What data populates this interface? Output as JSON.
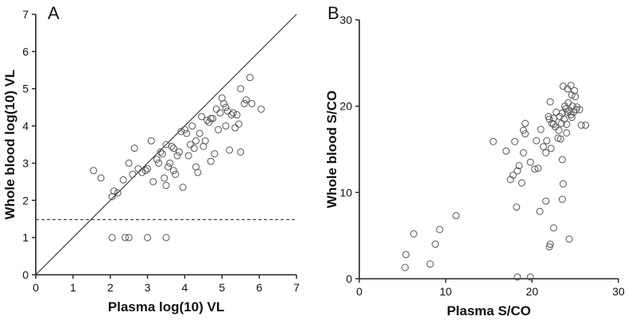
{
  "chart_data": [
    {
      "type": "scatter",
      "panel_label": "A",
      "xlabel": "Plasma log(10) VL",
      "ylabel": "Whole blood log(10) VL",
      "xlim": [
        0,
        7
      ],
      "ylim": [
        0,
        7
      ],
      "xticks": [
        "0",
        "1",
        "2",
        "3",
        "4",
        "5",
        "6",
        "7"
      ],
      "yticks": [
        "0",
        "1",
        "2",
        "3",
        "4",
        "5",
        "6",
        "7"
      ],
      "identity_line": true,
      "threshold_y": 1.48,
      "points": [
        [
          1.55,
          2.8
        ],
        [
          1.75,
          2.6
        ],
        [
          2.05,
          2.1
        ],
        [
          2.1,
          2.25
        ],
        [
          2.2,
          2.2
        ],
        [
          2.35,
          2.55
        ],
        [
          2.5,
          3.0
        ],
        [
          2.6,
          2.7
        ],
        [
          2.65,
          3.4
        ],
        [
          2.75,
          2.85
        ],
        [
          2.85,
          2.75
        ],
        [
          2.95,
          2.8
        ],
        [
          3.0,
          2.85
        ],
        [
          3.1,
          3.6
        ],
        [
          3.15,
          2.5
        ],
        [
          3.25,
          3.1
        ],
        [
          3.3,
          3.0
        ],
        [
          3.35,
          3.3
        ],
        [
          3.4,
          3.25
        ],
        [
          3.45,
          2.6
        ],
        [
          3.5,
          2.4
        ],
        [
          3.5,
          3.5
        ],
        [
          3.55,
          2.9
        ],
        [
          3.6,
          3.0
        ],
        [
          3.65,
          3.45
        ],
        [
          3.7,
          2.8
        ],
        [
          3.7,
          3.4
        ],
        [
          3.75,
          2.7
        ],
        [
          3.8,
          3.2
        ],
        [
          3.85,
          3.3
        ],
        [
          3.9,
          3.85
        ],
        [
          3.95,
          2.35
        ],
        [
          4.0,
          3.9
        ],
        [
          4.05,
          3.8
        ],
        [
          4.1,
          3.2
        ],
        [
          4.15,
          3.5
        ],
        [
          4.2,
          4.0
        ],
        [
          4.25,
          3.4
        ],
        [
          4.3,
          2.9
        ],
        [
          4.3,
          3.6
        ],
        [
          4.35,
          2.75
        ],
        [
          4.4,
          3.8
        ],
        [
          4.45,
          4.25
        ],
        [
          4.5,
          3.45
        ],
        [
          4.55,
          3.6
        ],
        [
          4.6,
          4.15
        ],
        [
          4.65,
          4.1
        ],
        [
          4.7,
          4.2
        ],
        [
          4.7,
          3.05
        ],
        [
          4.75,
          4.2
        ],
        [
          4.8,
          3.25
        ],
        [
          4.85,
          4.45
        ],
        [
          4.9,
          3.9
        ],
        [
          4.95,
          4.35
        ],
        [
          5.0,
          4.75
        ],
        [
          5.05,
          4.6
        ],
        [
          5.1,
          4.5
        ],
        [
          5.1,
          4.0
        ],
        [
          5.15,
          4.4
        ],
        [
          5.2,
          3.35
        ],
        [
          5.25,
          4.3
        ],
        [
          5.3,
          4.35
        ],
        [
          5.35,
          3.95
        ],
        [
          5.4,
          4.3
        ],
        [
          5.45,
          4.05
        ],
        [
          5.5,
          5.0
        ],
        [
          5.5,
          3.3
        ],
        [
          5.6,
          4.6
        ],
        [
          5.65,
          4.7
        ],
        [
          5.75,
          5.3
        ],
        [
          5.8,
          4.6
        ],
        [
          6.05,
          4.45
        ],
        [
          2.05,
          1.0
        ],
        [
          2.4,
          1.0
        ],
        [
          2.5,
          1.0
        ],
        [
          3.0,
          1.0
        ],
        [
          3.5,
          1.0
        ]
      ]
    },
    {
      "type": "scatter",
      "panel_label": "B",
      "xlabel": "Plasma S/CO",
      "ylabel": "Whole blood S/CO",
      "xlim": [
        0,
        30
      ],
      "ylim": [
        0,
        30
      ],
      "xticks": [
        "0",
        "10",
        "20",
        "30"
      ],
      "yticks": [
        "0",
        "10",
        "20",
        "30"
      ],
      "points": [
        [
          5.3,
          1.3
        ],
        [
          5.4,
          2.8
        ],
        [
          6.3,
          5.2
        ],
        [
          8.2,
          1.7
        ],
        [
          8.8,
          4.0
        ],
        [
          9.3,
          5.7
        ],
        [
          11.2,
          7.3
        ],
        [
          15.5,
          15.9
        ],
        [
          17.0,
          14.8
        ],
        [
          17.5,
          11.5
        ],
        [
          17.8,
          12.0
        ],
        [
          18.0,
          15.9
        ],
        [
          18.2,
          8.3
        ],
        [
          18.3,
          12.5
        ],
        [
          18.5,
          13.1
        ],
        [
          18.8,
          11.1
        ],
        [
          19.0,
          14.6
        ],
        [
          19.0,
          17.2
        ],
        [
          19.2,
          18.0
        ],
        [
          19.2,
          16.8
        ],
        [
          19.8,
          13.5
        ],
        [
          20.3,
          12.7
        ],
        [
          20.5,
          16.0
        ],
        [
          20.7,
          12.8
        ],
        [
          20.9,
          7.8
        ],
        [
          21.0,
          17.3
        ],
        [
          21.3,
          15.3
        ],
        [
          21.6,
          9.0
        ],
        [
          21.6,
          14.6
        ],
        [
          21.7,
          16.0
        ],
        [
          21.9,
          18.8
        ],
        [
          22.0,
          18.5
        ],
        [
          22.1,
          20.5
        ],
        [
          22.2,
          15.1
        ],
        [
          22.3,
          18.0
        ],
        [
          22.5,
          17.9
        ],
        [
          22.5,
          18.6
        ],
        [
          22.7,
          17.6
        ],
        [
          22.8,
          19.3
        ],
        [
          23.0,
          16.3
        ],
        [
          23.1,
          17.2
        ],
        [
          23.2,
          18.8
        ],
        [
          23.3,
          16.2
        ],
        [
          23.4,
          18.0
        ],
        [
          23.5,
          19.2
        ],
        [
          23.7,
          18.5
        ],
        [
          23.8,
          20.0
        ],
        [
          23.9,
          19.7
        ],
        [
          24.0,
          17.9
        ],
        [
          24.0,
          16.9
        ],
        [
          24.1,
          19.3
        ],
        [
          24.2,
          20.4
        ],
        [
          24.3,
          19.5
        ],
        [
          24.5,
          19.0
        ],
        [
          24.6,
          18.7
        ],
        [
          24.6,
          21.3
        ],
        [
          24.7,
          20.0
        ],
        [
          24.8,
          19.3
        ],
        [
          24.9,
          21.8
        ],
        [
          25.0,
          21.1
        ],
        [
          25.1,
          19.6
        ],
        [
          25.2,
          19.9
        ],
        [
          25.5,
          19.6
        ],
        [
          25.7,
          17.8
        ],
        [
          26.2,
          17.8
        ],
        [
          23.6,
          22.3
        ],
        [
          24.5,
          22.4
        ],
        [
          22.1,
          4.0
        ],
        [
          22.5,
          5.9
        ],
        [
          22.0,
          3.7
        ],
        [
          23.5,
          9.2
        ],
        [
          23.6,
          11.0
        ],
        [
          23.5,
          13.8
        ],
        [
          24.3,
          4.6
        ],
        [
          18.3,
          0.2
        ],
        [
          19.8,
          0.2
        ],
        [
          24.1,
          22.0
        ]
      ]
    }
  ]
}
